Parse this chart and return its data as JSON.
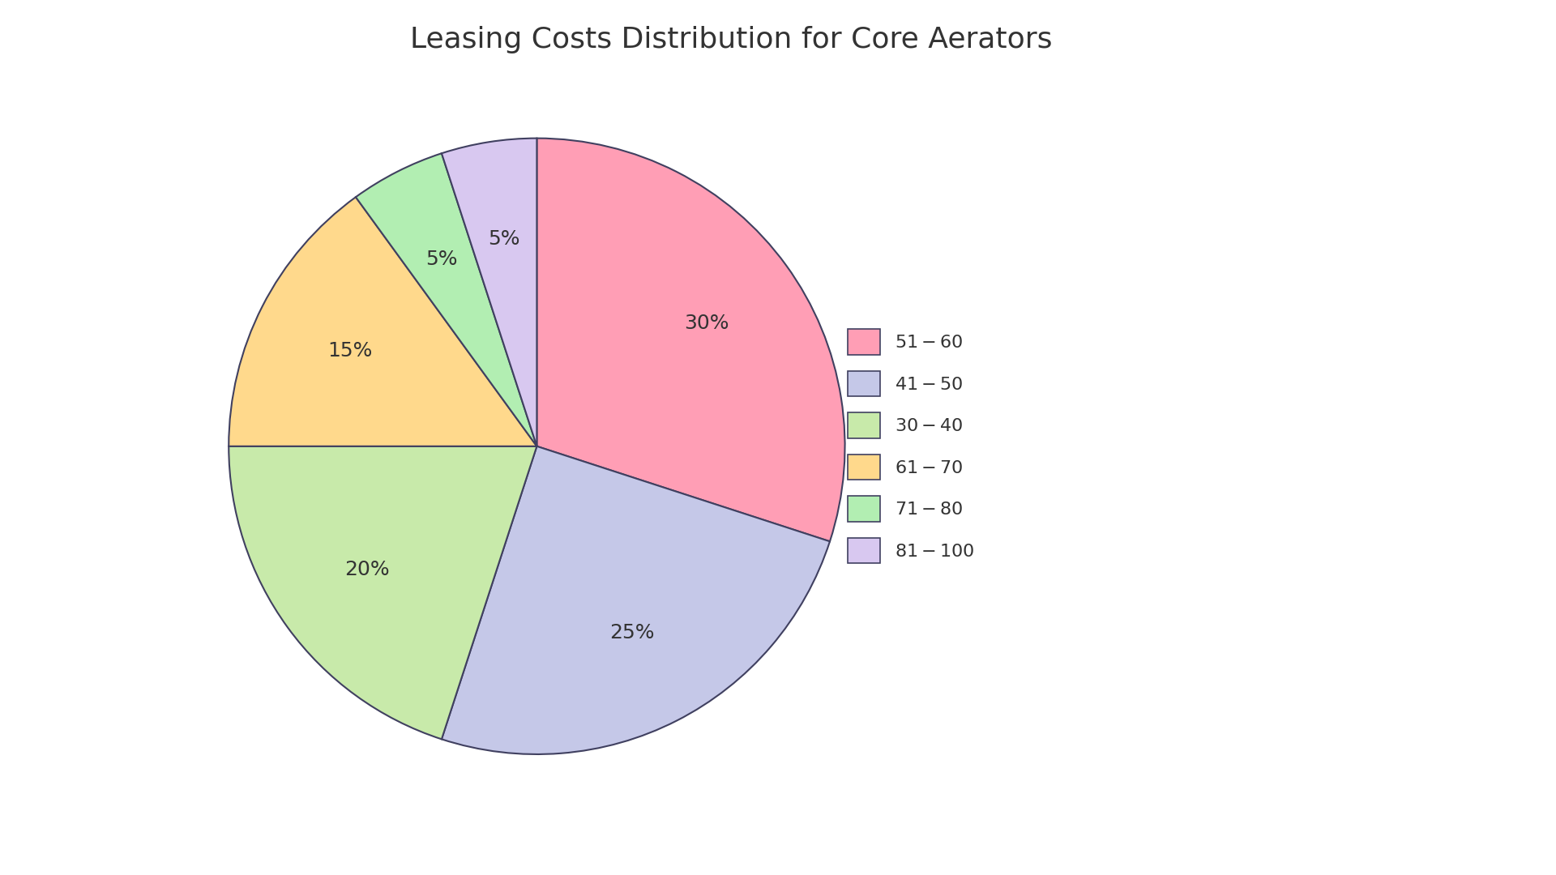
{
  "title": "Leasing Costs Distribution for Core Aerators",
  "labels": [
    "$51 - $60",
    "$41 - $50",
    "$30 - $40",
    "$61 - $70",
    "$71 - $80",
    "$81 - $100"
  ],
  "values": [
    30,
    25,
    20,
    15,
    5,
    5
  ],
  "colors": [
    "#FF9EB5",
    "#C5C8E8",
    "#C8EAAA",
    "#FFD98C",
    "#B2EEB2",
    "#D8C8F0"
  ],
  "wedge_edge_color": "#404060",
  "wedge_edge_width": 1.5,
  "autopct_fontsize": 18,
  "legend_fontsize": 16,
  "title_fontsize": 26,
  "background_color": "#FFFFFF",
  "text_color": "#333333"
}
